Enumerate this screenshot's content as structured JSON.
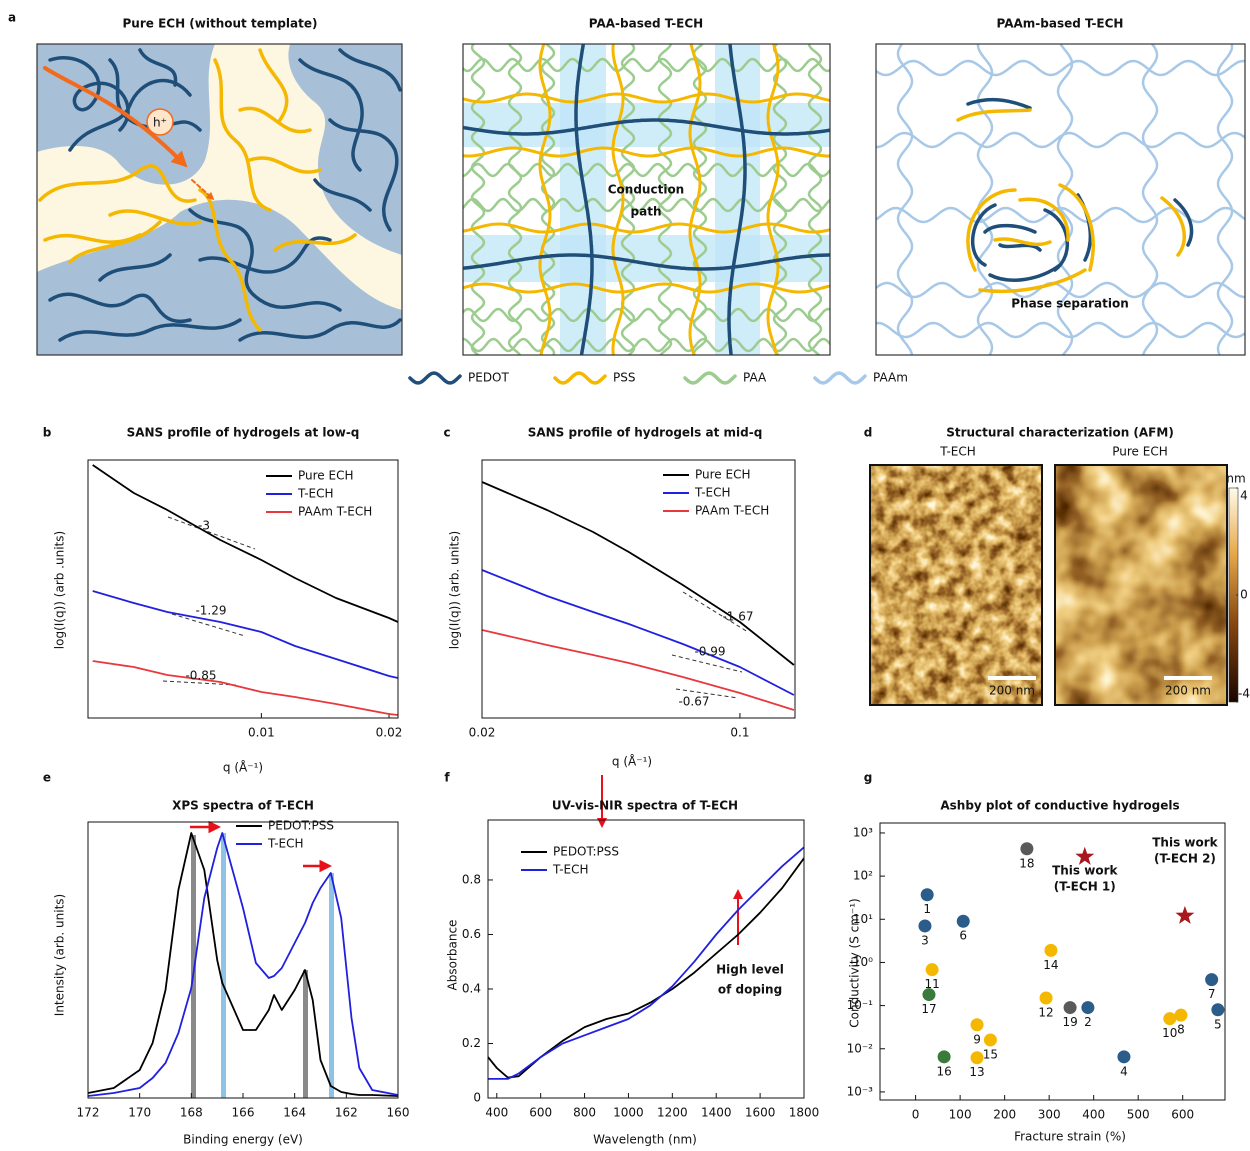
{
  "panel_a": {
    "label": "a",
    "titles": [
      "Pure ECH (without template)",
      "PAA-based T-ECH",
      "PAAm-based T-ECH"
    ],
    "carrier": "h⁺",
    "conduction_path": [
      "Conduction",
      "path"
    ],
    "phase_separation": "Phase separation",
    "legend": [
      {
        "name": "PEDOT",
        "color": "#1f4e79"
      },
      {
        "name": "PSS",
        "color": "#f5b800"
      },
      {
        "name": "PAA",
        "color": "#9ccc8f"
      },
      {
        "name": "PAAm",
        "color": "#a8c8e8"
      }
    ]
  },
  "panel_d": {
    "label": "d",
    "title": "Structural characterization (AFM)",
    "images": [
      "T-ECH",
      "Pure ECH"
    ],
    "scale_bar": "200 nm",
    "colorbar": {
      "label": "nm",
      "lim": [
        -4,
        4
      ],
      "ticks": [
        4,
        0,
        -4
      ]
    }
  },
  "chart_data": [
    {
      "label": "b",
      "type": "line",
      "title": "SANS profile of hydrogels at low-q",
      "xlabel": "q (Å⁻¹)",
      "ylabel": "log(I(q)) (arb .units)",
      "xscale": "log",
      "xlim": [
        0.0039,
        0.021
      ],
      "xticks": [
        0.01,
        0.02
      ],
      "ylim": [
        0,
        2.58
      ],
      "x": [
        0.004,
        0.005,
        0.006,
        0.008,
        0.01,
        0.012,
        0.015,
        0.02,
        0.021
      ],
      "series": [
        {
          "name": "Pure ECH",
          "color": "#000000",
          "values": [
            2.53,
            2.25,
            2.08,
            1.78,
            1.58,
            1.4,
            1.2,
            1.0,
            0.96
          ]
        },
        {
          "name": "T-ECH",
          "color": "#2020e0",
          "values": [
            1.27,
            1.15,
            1.06,
            0.96,
            0.86,
            0.72,
            0.59,
            0.42,
            0.4
          ]
        },
        {
          "name": "PAAm T-ECH",
          "color": "#e8383d",
          "values": [
            0.57,
            0.51,
            0.43,
            0.36,
            0.26,
            0.21,
            0.14,
            0.04,
            0.03
          ]
        }
      ],
      "annotations": [
        "-3",
        "-1.29",
        "-0.85"
      ]
    },
    {
      "label": "c",
      "type": "line",
      "title": "SANS profile of hydrogels at mid-q",
      "xlabel": "q (Å⁻¹)",
      "ylabel": "log(I(q)) (arb. units)",
      "xscale": "log",
      "xlim": [
        0.02,
        0.141
      ],
      "xticks": [
        0.02,
        0.1
      ],
      "ylim": [
        0,
        2.58
      ],
      "x": [
        0.02,
        0.03,
        0.04,
        0.05,
        0.07,
        0.1,
        0.14
      ],
      "series": [
        {
          "name": "Pure ECH",
          "color": "#000000",
          "values": [
            2.36,
            2.08,
            1.86,
            1.66,
            1.33,
            0.96,
            0.53
          ]
        },
        {
          "name": "T-ECH",
          "color": "#2020e0",
          "values": [
            1.48,
            1.22,
            1.06,
            0.94,
            0.74,
            0.51,
            0.23
          ]
        },
        {
          "name": "PAAm T-ECH",
          "color": "#e8383d",
          "values": [
            0.88,
            0.73,
            0.63,
            0.55,
            0.41,
            0.25,
            0.08
          ]
        }
      ],
      "annotations": [
        "-1.67",
        "-0.99",
        "-0.67"
      ]
    },
    {
      "label": "e",
      "type": "line",
      "title": "XPS spectra of T-ECH",
      "xlabel": "Binding energy (eV)",
      "ylabel": "Intensity (arb. units)",
      "xlim": [
        172,
        160
      ],
      "xticks": [
        172,
        170,
        168,
        166,
        164,
        162,
        160
      ],
      "ylim": [
        0,
        2.76
      ],
      "x": [
        172,
        171,
        170,
        169.5,
        169,
        168.5,
        168,
        167.5,
        167,
        166.8,
        166,
        165.5,
        165,
        164.8,
        164.5,
        164,
        163.6,
        163.3,
        163,
        162.6,
        162.2,
        161.8,
        161.5,
        161,
        160
      ],
      "series": [
        {
          "name": "PEDOT:PSS",
          "color": "#000000",
          "values": [
            0.05,
            0.1,
            0.28,
            0.55,
            1.08,
            2.08,
            2.65,
            2.28,
            1.38,
            1.15,
            0.68,
            0.68,
            0.88,
            1.03,
            0.88,
            1.08,
            1.28,
            0.98,
            0.38,
            0.12,
            0.06,
            0.04,
            0.03,
            0.03,
            0.02
          ]
        },
        {
          "name": "T-ECH",
          "color": "#2020e0",
          "values": [
            0.02,
            0.05,
            0.1,
            0.2,
            0.35,
            0.65,
            1.1,
            2.0,
            2.5,
            2.65,
            1.9,
            1.35,
            1.2,
            1.22,
            1.3,
            1.55,
            1.75,
            1.95,
            2.1,
            2.25,
            1.8,
            0.8,
            0.3,
            0.08,
            0.03
          ]
        }
      ]
    },
    {
      "label": "f",
      "type": "line",
      "title": "UV-vis-NIR spectra of T-ECH",
      "xlabel": "Wavelength (nm)",
      "ylabel": "Absorbance",
      "xlim": [
        360,
        1800
      ],
      "xticks": [
        400,
        600,
        800,
        1000,
        1200,
        1400,
        1600,
        1800
      ],
      "ylim": [
        0,
        1.02
      ],
      "yticks": [
        0,
        0.2,
        0.4,
        0.6,
        0.8
      ],
      "x": [
        360,
        400,
        450,
        500,
        600,
        700,
        800,
        900,
        1000,
        1100,
        1200,
        1300,
        1400,
        1500,
        1600,
        1700,
        1800
      ],
      "series": [
        {
          "name": "PEDOT:PSS",
          "color": "#000000",
          "values": [
            0.15,
            0.11,
            0.075,
            0.08,
            0.15,
            0.21,
            0.26,
            0.29,
            0.31,
            0.35,
            0.4,
            0.46,
            0.53,
            0.6,
            0.68,
            0.77,
            0.88
          ]
        },
        {
          "name": "T-ECH",
          "color": "#2020e0",
          "values": [
            0.07,
            0.07,
            0.07,
            0.09,
            0.15,
            0.2,
            0.23,
            0.26,
            0.29,
            0.34,
            0.41,
            0.5,
            0.6,
            0.69,
            0.77,
            0.85,
            0.92
          ]
        }
      ],
      "annotations": [
        "High level",
        "of doping"
      ]
    },
    {
      "label": "g",
      "type": "scatter",
      "title": "Ashby plot of conductive hydrogels",
      "xlabel": "Fracture strain (%)",
      "ylabel": "Conductivity (S cm⁻¹)",
      "yscale": "log",
      "xlim": [
        -80,
        695
      ],
      "ylim": [
        0.00065,
        1700
      ],
      "xticks": [
        0,
        100,
        200,
        300,
        400,
        500,
        600
      ],
      "yticks": [
        {
          "value": 0.001,
          "label": "10⁻³"
        },
        {
          "value": 0.01,
          "label": "10⁻²"
        },
        {
          "value": 0.1,
          "label": "10⁻¹"
        },
        {
          "value": 1,
          "label": "10⁰"
        },
        {
          "value": 10,
          "label": "10¹"
        },
        {
          "value": 100,
          "label": "10²"
        },
        {
          "value": 1000,
          "label": "10³"
        }
      ],
      "points": [
        {
          "label": "1",
          "x": 26,
          "y": 37,
          "color": "#2b5c8a"
        },
        {
          "label": "3",
          "x": 21,
          "y": 7,
          "color": "#2b5c8a"
        },
        {
          "label": "6",
          "x": 107,
          "y": 9,
          "color": "#2b5c8a"
        },
        {
          "label": "18",
          "x": 250,
          "y": 430,
          "color": "#5a5a5a"
        },
        {
          "label": "11",
          "x": 37,
          "y": 0.68,
          "color": "#f5b800"
        },
        {
          "label": "17",
          "x": 30,
          "y": 0.18,
          "color": "#3a7a3a"
        },
        {
          "label": "16",
          "x": 64,
          "y": 0.0065,
          "color": "#3a7a3a"
        },
        {
          "label": "9",
          "x": 138,
          "y": 0.036,
          "color": "#f5b800"
        },
        {
          "label": "13",
          "x": 138,
          "y": 0.0062,
          "color": "#f5b800"
        },
        {
          "label": "15",
          "x": 168,
          "y": 0.016,
          "color": "#f5b800"
        },
        {
          "label": "14",
          "x": 304,
          "y": 1.9,
          "color": "#f5b800"
        },
        {
          "label": "12",
          "x": 293,
          "y": 0.15,
          "color": "#f5b800"
        },
        {
          "label": "19",
          "x": 347,
          "y": 0.09,
          "color": "#5a5a5a"
        },
        {
          "label": "2",
          "x": 387,
          "y": 0.09,
          "color": "#2b5c8a"
        },
        {
          "label": "4",
          "x": 468,
          "y": 0.0065,
          "color": "#2b5c8a"
        },
        {
          "label": "10",
          "x": 571,
          "y": 0.05,
          "color": "#f5b800"
        },
        {
          "label": "8",
          "x": 596,
          "y": 0.06,
          "color": "#f5b800"
        },
        {
          "label": "7",
          "x": 665,
          "y": 0.4,
          "color": "#2b5c8a"
        },
        {
          "label": "5",
          "x": 679,
          "y": 0.08,
          "color": "#2b5c8a"
        }
      ],
      "stars": [
        {
          "label": [
            "This work",
            "(T-ECH 1)"
          ],
          "x": 380,
          "y": 280,
          "color": "#a8181d"
        },
        {
          "label": [
            "This work",
            "(T-ECH 2)"
          ],
          "x": 605,
          "y": 12,
          "color": "#a8181d"
        }
      ]
    }
  ]
}
